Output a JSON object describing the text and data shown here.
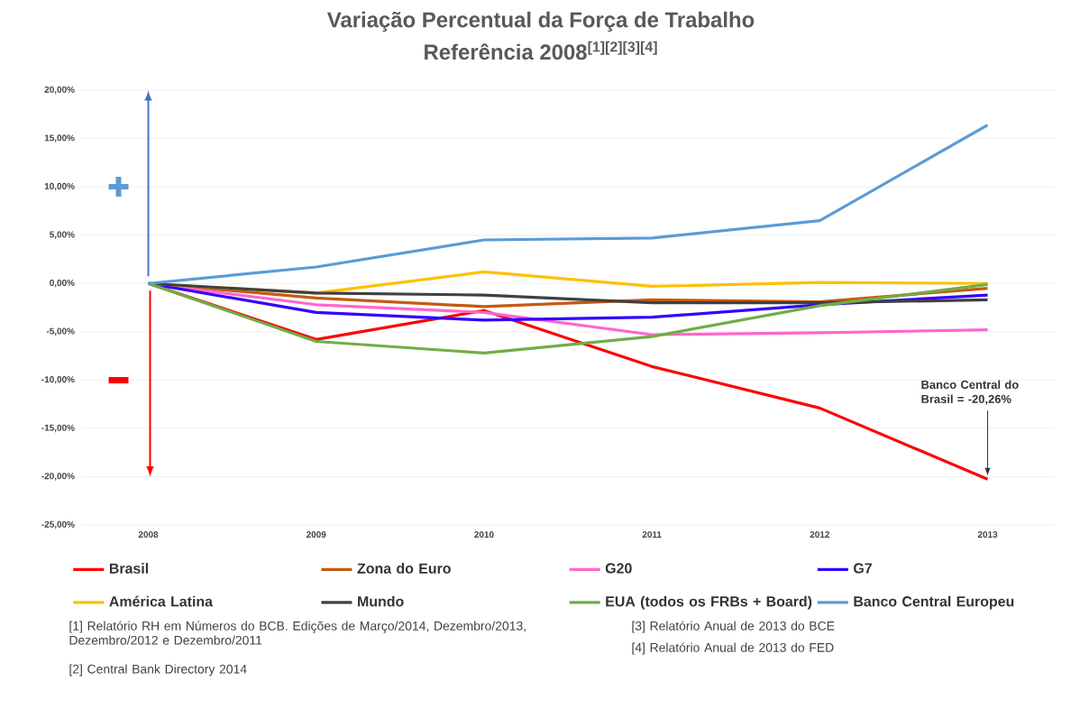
{
  "chart_data": {
    "type": "line",
    "title": "Variação Percentual da Força de Trabalho",
    "subtitle": "Referência 2008$^{[1][2][3][4]}$",
    "categories": [
      "2008",
      "2009",
      "2010",
      "2011",
      "2012",
      "2013"
    ],
    "series": [
      {
        "name": "Brasil",
        "color": "#ff0000",
        "values": [
          0,
          -5.8,
          -2.8,
          -8.6,
          -12.9,
          -20.26
        ]
      },
      {
        "name": "Zona do Euro",
        "color": "#c55a11",
        "values": [
          0,
          -1.5,
          -2.4,
          -1.7,
          -1.9,
          -0.5
        ]
      },
      {
        "name": "G20",
        "color": "#ff66cc",
        "values": [
          0,
          -2.2,
          -3.0,
          -5.3,
          -5.1,
          -4.8
        ]
      },
      {
        "name": "G7",
        "color": "#3300ff",
        "values": [
          0,
          -3.0,
          -3.8,
          -3.5,
          -2.2,
          -1.2
        ]
      },
      {
        "name": "América Latina",
        "color": "#ffc000",
        "values": [
          0,
          -1.0,
          1.2,
          -0.3,
          0.1,
          0
        ]
      },
      {
        "name": "Mundo",
        "color": "#404040",
        "values": [
          0,
          -1.0,
          -1.2,
          -2.0,
          -2.0,
          -1.7
        ]
      },
      {
        "name": "EUA (todos os FRBs + Board)",
        "color": "#70ad47",
        "values": [
          0,
          -6.0,
          -7.2,
          -5.5,
          -2.3,
          -0.1
        ]
      },
      {
        "name": "Banco Central Europeu",
        "color": "#5b9bd5",
        "values": [
          0,
          1.7,
          4.5,
          4.7,
          6.5,
          16.4
        ]
      }
    ],
    "ylim": [
      -25,
      20
    ],
    "yticks": [
      {
        "value": -25,
        "label": "-25,00%"
      },
      {
        "value": -20,
        "label": "-20,00%"
      },
      {
        "value": -15,
        "label": "-15,00%"
      },
      {
        "value": -10,
        "label": "-10,00%"
      },
      {
        "value": -5,
        "label": "-5,00%"
      },
      {
        "value": 0,
        "label": "0,00%"
      },
      {
        "value": 5,
        "label": "5,00%"
      },
      {
        "value": 10,
        "label": "10,00%"
      },
      {
        "value": 15,
        "label": "15,00%"
      },
      {
        "value": 20,
        "label": "20,00%"
      }
    ],
    "grid": "y",
    "legend": "bottom",
    "marker": "none",
    "line_style": "solid",
    "annotations": [
      {
        "text": "Banco Central do Brasil = -20,26%",
        "x": "2013",
        "y": -20.26
      },
      "[1] Relatório RH em Números do BCB. Edições de Março/2014, Dezembro/2013, Dezembro/2012 e Dezembro/2011",
      "[2] Central Bank Directory 2014",
      "[3] Relatório Anual de 2013 do BCE",
      "[4] Relatório Anual de 2013 do FED"
    ]
  }
}
